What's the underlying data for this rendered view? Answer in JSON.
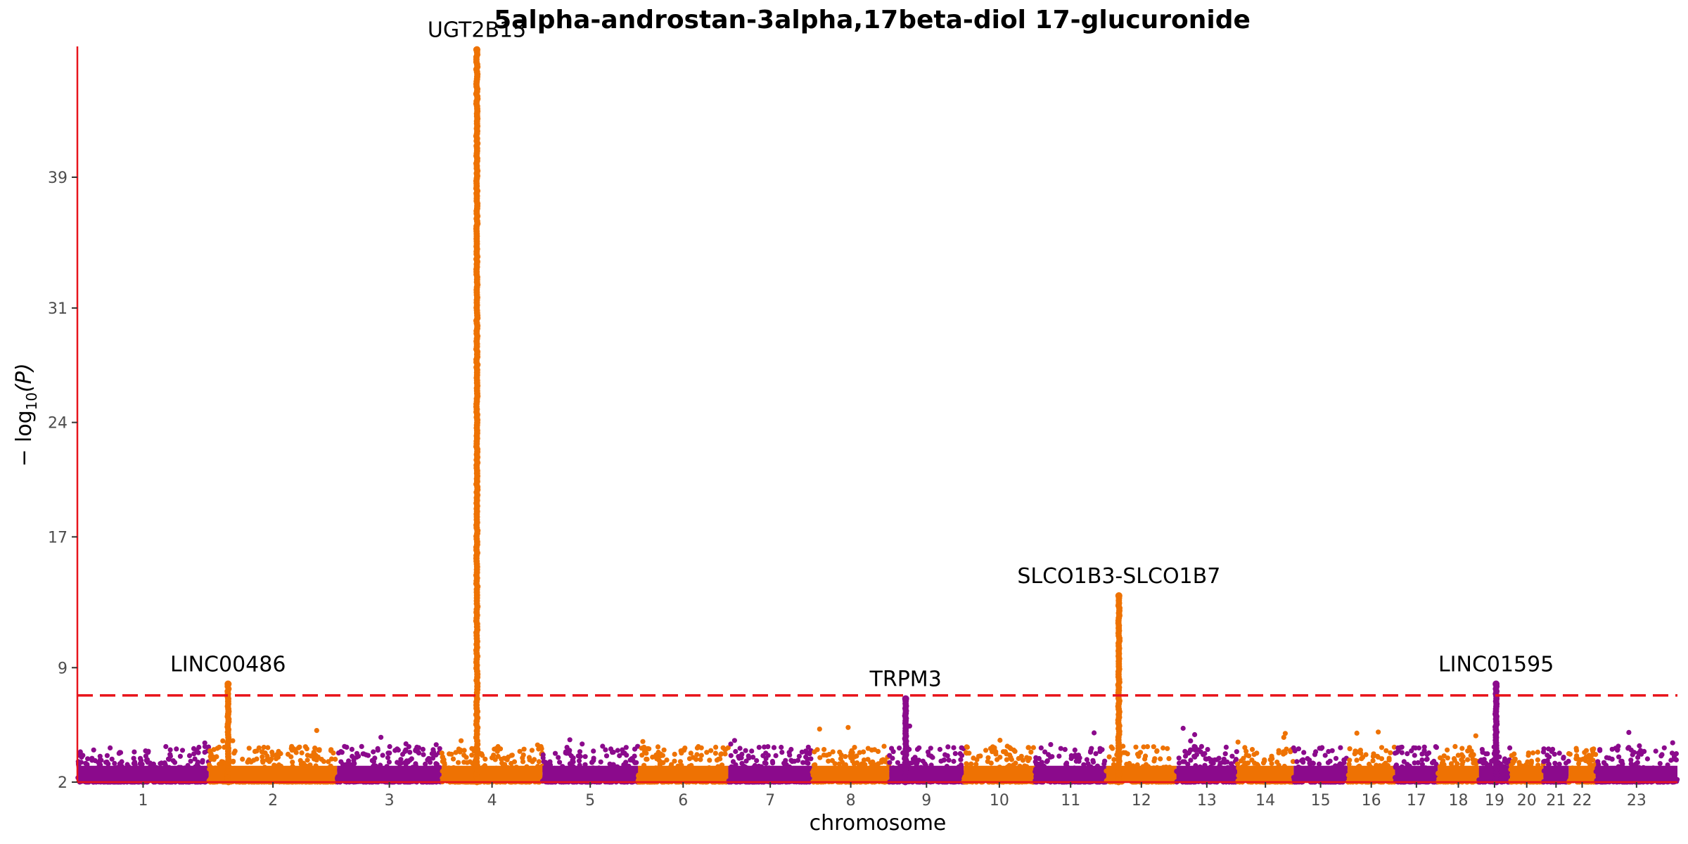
{
  "chart_data": {
    "type": "scatter",
    "subtype": "manhattan",
    "title": "5alpha-androstan-3alpha,17beta-diol 17-glucuronide",
    "xlabel": "chromosome",
    "ylabel": "− log10(P)",
    "ylabel_parts": {
      "prefix": "− log",
      "sub": "10",
      "suffix": "(P)"
    },
    "ylim": [
      2,
      47
    ],
    "yticks": [
      2,
      9,
      17,
      24,
      31,
      39
    ],
    "significance_threshold": 7.3,
    "colors": {
      "odd": "#8B0A8C",
      "even": "#EE7203",
      "threshold": "#E8141B",
      "axis": "#E8141B"
    },
    "chromosomes": [
      {
        "label": "1",
        "length": 249
      },
      {
        "label": "2",
        "length": 243
      },
      {
        "label": "3",
        "length": 198
      },
      {
        "label": "4",
        "length": 191
      },
      {
        "label": "5",
        "length": 181
      },
      {
        "label": "6",
        "length": 171
      },
      {
        "label": "7",
        "length": 159
      },
      {
        "label": "8",
        "length": 146
      },
      {
        "label": "9",
        "length": 141
      },
      {
        "label": "10",
        "length": 135
      },
      {
        "label": "11",
        "length": 135
      },
      {
        "label": "12",
        "length": 133
      },
      {
        "label": "13",
        "length": 115
      },
      {
        "label": "14",
        "length": 107
      },
      {
        "label": "15",
        "length": 102
      },
      {
        "label": "16",
        "length": 90
      },
      {
        "label": "17",
        "length": 81
      },
      {
        "label": "18",
        "length": 78
      },
      {
        "label": "19",
        "length": 59
      },
      {
        "label": "20",
        "length": 63
      },
      {
        "label": "21",
        "length": 48
      },
      {
        "label": "22",
        "length": 51
      },
      {
        "label": "23",
        "length": 155
      }
    ],
    "peaks": [
      {
        "chr": "2",
        "pos": 0.15,
        "max": 8.0,
        "label": "LINC00486"
      },
      {
        "chr": "4",
        "pos": 0.35,
        "max": 46.8,
        "label": "UGT2B15"
      },
      {
        "chr": "9",
        "pos": 0.22,
        "max": 7.1,
        "label": "TRPM3"
      },
      {
        "chr": "12",
        "pos": 0.18,
        "max": 13.4,
        "label": "SLCO1B3-SLCO1B7"
      },
      {
        "chr": "19",
        "pos": 0.55,
        "max": 8.0,
        "label": "LINC01595"
      }
    ]
  }
}
